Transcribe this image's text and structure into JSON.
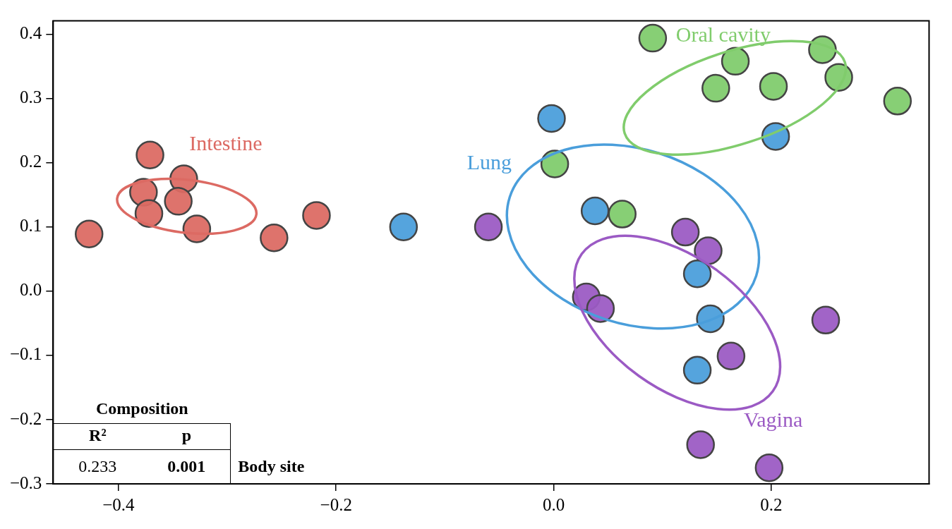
{
  "chart_data": {
    "type": "scatter",
    "xlim": [
      -0.46,
      0.345
    ],
    "ylim": [
      -0.3,
      0.421
    ],
    "xticks": [
      {
        "value": -0.4,
        "label": "−0.4"
      },
      {
        "value": -0.2,
        "label": "−0.2"
      },
      {
        "value": 0,
        "label": "0.0"
      },
      {
        "value": 0.2,
        "label": "0.2"
      }
    ],
    "yticks": [
      {
        "value": -0.3,
        "label": "−0.3"
      },
      {
        "value": -0.2,
        "label": "−0.2"
      },
      {
        "value": -0.1,
        "label": "−0.1"
      },
      {
        "value": 0,
        "label": "0.0"
      },
      {
        "value": 0.1,
        "label": "0.1"
      },
      {
        "value": 0.2,
        "label": "0.2"
      },
      {
        "value": 0.3,
        "label": "0.3"
      },
      {
        "value": 0.4,
        "label": "0.4"
      }
    ],
    "grid": false,
    "legend": false,
    "marker": "circle",
    "series": [
      {
        "name": "Intestine",
        "color": "#dc6a63",
        "x": [
          -0.427,
          -0.371,
          -0.34,
          -0.377,
          -0.372,
          -0.345,
          -0.328,
          -0.257,
          -0.218
        ],
        "values": [
          0.089,
          0.212,
          0.175,
          0.154,
          0.121,
          0.14,
          0.097,
          0.083,
          0.118
        ]
      },
      {
        "name": "Lung",
        "color": "#4a9edb",
        "x": [
          -0.138,
          -0.002,
          0.038,
          0.132,
          0.144,
          0.132,
          0.204
        ],
        "values": [
          0.1,
          0.269,
          0.125,
          0.027,
          -0.043,
          -0.123,
          0.241
        ]
      },
      {
        "name": "Oral cavity",
        "color": "#80cc6c",
        "x": [
          0.091,
          0.167,
          0.247,
          0.149,
          0.202,
          0.262,
          0.316,
          0.001,
          0.063
        ],
        "values": [
          0.394,
          0.358,
          0.376,
          0.316,
          0.319,
          0.333,
          0.296,
          0.198,
          0.12
        ]
      },
      {
        "name": "Vagina",
        "color": "#9b5ac4",
        "x": [
          -0.06,
          0.121,
          0.142,
          0.03,
          0.043,
          0.163,
          0.25,
          0.135,
          0.198
        ],
        "values": [
          0.1,
          0.092,
          0.063,
          -0.009,
          -0.027,
          -0.101,
          -0.045,
          -0.239,
          -0.275
        ]
      }
    ],
    "annotations": [
      "Composition",
      "R²",
      "p",
      "0.233",
      "0.001",
      "Body site"
    ]
  }
}
